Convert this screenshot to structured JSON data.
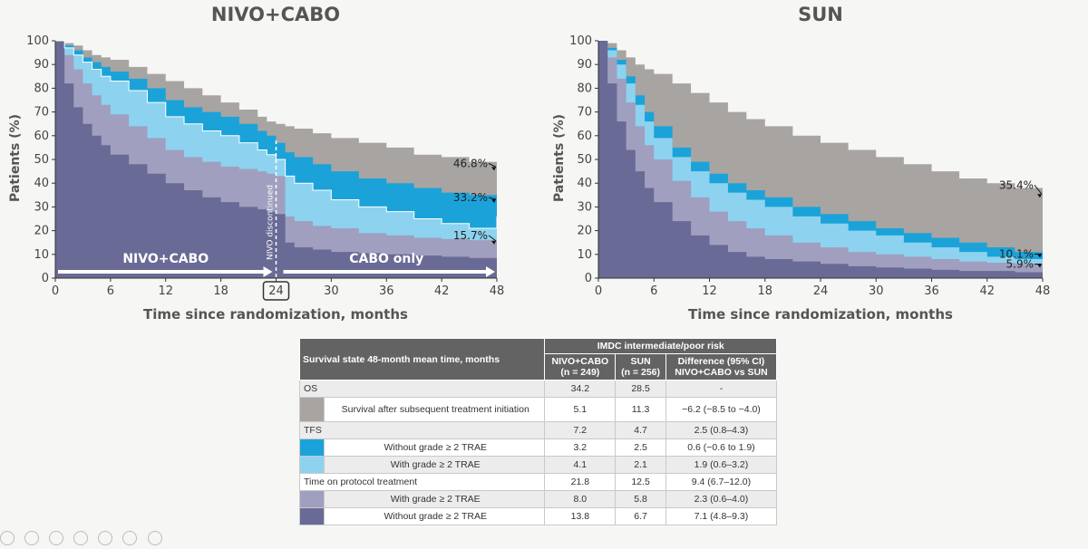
{
  "colors": {
    "background": "#f6f6f4",
    "os_state": "#a8a4a1",
    "tfs_without": "#1ba3d9",
    "tfs_with": "#8dd3ef",
    "tx_with": "#a09fbf",
    "tx_without": "#6a6a96",
    "header": "#636363"
  },
  "chart_data": [
    {
      "type": "area",
      "title": "NIVO+CABO",
      "xlabel": "Time since randomization, months",
      "ylabel": "Patients (%)",
      "xlim": [
        0,
        48
      ],
      "ylim": [
        0,
        100
      ],
      "xticks": [
        0,
        6,
        12,
        18,
        24,
        30,
        36,
        42,
        48
      ],
      "yticks": [
        0,
        10,
        20,
        30,
        40,
        50,
        60,
        70,
        80,
        90,
        100
      ],
      "highlighted_tick": "24",
      "x": [
        0,
        1,
        2,
        3,
        4,
        5,
        6,
        8,
        10,
        12,
        14,
        16,
        18,
        20,
        22,
        23,
        24,
        25,
        26,
        28,
        30,
        33,
        36,
        39,
        42,
        45,
        48
      ],
      "series": [
        {
          "name": "Survival after subsequent treatment initiation",
          "upper": [
            100,
            99,
            98,
            96,
            94,
            93,
            92,
            89,
            86,
            83,
            80,
            77,
            74,
            71,
            68,
            66,
            65,
            64,
            63,
            61,
            59,
            57,
            55,
            52,
            51,
            49,
            46.8
          ]
        },
        {
          "name": "TFS without grade ≥ 2 TRAE",
          "upper": [
            100,
            98,
            96,
            93,
            91,
            89,
            87,
            84,
            80,
            75,
            72,
            70,
            68,
            65,
            62,
            60,
            57,
            53,
            51,
            48,
            45,
            42,
            40,
            38,
            36,
            35,
            33.2
          ]
        },
        {
          "name": "TFS with grade ≥ 2 TRAE",
          "upper": [
            100,
            97,
            94,
            91,
            88,
            85,
            83,
            79,
            74,
            68,
            65,
            62,
            60,
            57,
            54,
            52,
            50,
            43,
            40,
            37,
            33,
            30,
            28,
            25,
            23,
            21,
            26
          ]
        },
        {
          "name": "Protocol treatment with grade ≥ 2 TRAE",
          "upper": [
            100,
            94,
            88,
            82,
            77,
            73,
            69,
            64,
            59,
            54,
            51,
            49,
            47,
            46,
            45,
            44,
            43,
            26,
            24,
            22,
            21,
            19,
            18,
            17,
            16.5,
            16,
            15.7
          ]
        },
        {
          "name": "Protocol treatment without grade ≥ 2 TRAE",
          "upper": [
            100,
            82,
            72,
            65,
            60,
            56,
            52,
            48,
            44,
            40,
            37,
            34,
            32,
            30,
            29,
            28,
            27,
            15,
            13,
            12,
            11,
            10.5,
            10,
            9.5,
            9,
            8.5,
            8
          ]
        }
      ],
      "end_labels": [
        "46.8%",
        "33.2%",
        "15.7%"
      ],
      "end_label_values": [
        46.8,
        33.2,
        15.7
      ],
      "annotations": {
        "arrow_left": "NIVO+CABO",
        "arrow_right": "CABO only",
        "vertical": "NIVO discontinued",
        "vertical_x": 24
      }
    },
    {
      "type": "area",
      "title": "SUN",
      "xlabel": "Time since randomization, months",
      "ylabel": "Patients (%)",
      "xlim": [
        0,
        48
      ],
      "ylim": [
        0,
        100
      ],
      "xticks": [
        0,
        6,
        12,
        18,
        24,
        30,
        36,
        42,
        48
      ],
      "yticks": [
        0,
        10,
        20,
        30,
        40,
        50,
        60,
        70,
        80,
        90,
        100
      ],
      "x": [
        0,
        1,
        2,
        3,
        4,
        5,
        6,
        8,
        10,
        12,
        14,
        16,
        18,
        21,
        24,
        27,
        30,
        33,
        36,
        39,
        42,
        45,
        48
      ],
      "series": [
        {
          "name": "Survival after subsequent treatment initiation",
          "upper": [
            100,
            99,
            96,
            93,
            90,
            88,
            86,
            82,
            78,
            74,
            70,
            67,
            64,
            60,
            57,
            54,
            51,
            48,
            45,
            42,
            40,
            38,
            35.4
          ]
        },
        {
          "name": "TFS without grade ≥ 2 TRAE",
          "upper": [
            100,
            97,
            92,
            85,
            77,
            70,
            64,
            55,
            49,
            44,
            40,
            37,
            34,
            30,
            27,
            24,
            21,
            19,
            17,
            15,
            13,
            11,
            10.1
          ]
        },
        {
          "name": "TFS with grade ≥ 2 TRAE",
          "upper": [
            100,
            96,
            90,
            82,
            73,
            66,
            59,
            51,
            45,
            40,
            36,
            33,
            30,
            26,
            23,
            20,
            18,
            15,
            13,
            11,
            9,
            8,
            7
          ]
        },
        {
          "name": "Protocol treatment with grade ≥ 2 TRAE",
          "upper": [
            100,
            93,
            84,
            74,
            64,
            56,
            50,
            41,
            34,
            28,
            24,
            21,
            18,
            15,
            13,
            11,
            10,
            9,
            8,
            7,
            6.5,
            6,
            5.9
          ]
        },
        {
          "name": "Protocol treatment without grade ≥ 2 TRAE",
          "upper": [
            100,
            82,
            66,
            54,
            45,
            38,
            32,
            24,
            18,
            14,
            11,
            9,
            8,
            7,
            6,
            5,
            4.5,
            4,
            3.5,
            3,
            3,
            2.5,
            2.5
          ]
        }
      ],
      "end_labels": [
        "35.4%",
        "10.1%",
        "5.9%"
      ],
      "end_label_values": [
        35.4,
        10.1,
        5.9
      ]
    }
  ],
  "table": {
    "header_col": "Survival state 48-month mean time, months",
    "group_header": "IMDC intermediate/poor risk",
    "col1": "NIVO+CABO\n(n = 249)",
    "col2": "SUN\n(n = 256)",
    "col3": "Difference (95% CI)\nNIVO+CABO vs SUN",
    "rows": [
      {
        "label": "OS",
        "swatch": "",
        "v1": "34.2",
        "v2": "28.5",
        "v3": "-"
      },
      {
        "label": "Survival after subsequent treatment initiation",
        "swatch": "os_state",
        "v1": "5.1",
        "v2": "11.3",
        "v3": "−6.2 (−8.5 to −4.0)"
      },
      {
        "label": "TFS",
        "swatch": "",
        "v1": "7.2",
        "v2": "4.7",
        "v3": "2.5 (0.8–4.3)"
      },
      {
        "label": "Without grade ≥ 2 TRAE",
        "swatch": "tfs_without",
        "v1": "3.2",
        "v2": "2.5",
        "v3": "0.6 (−0.6 to 1.9)"
      },
      {
        "label": "With grade ≥ 2 TRAE",
        "swatch": "tfs_with",
        "v1": "4.1",
        "v2": "2.1",
        "v3": "1.9 (0.6–3.2)"
      },
      {
        "label": "Time on protocol treatment",
        "swatch": "",
        "v1": "21.8",
        "v2": "12.5",
        "v3": "9.4 (6.7–12.0)"
      },
      {
        "label": "With grade ≥ 2 TRAE",
        "swatch": "tx_with",
        "v1": "8.0",
        "v2": "5.8",
        "v3": "2.3 (0.6–4.0)"
      },
      {
        "label": "Without grade ≥ 2 TRAE",
        "swatch": "tx_without",
        "v1": "13.8",
        "v2": "6.7",
        "v3": "7.1 (4.8–9.3)"
      }
    ]
  }
}
